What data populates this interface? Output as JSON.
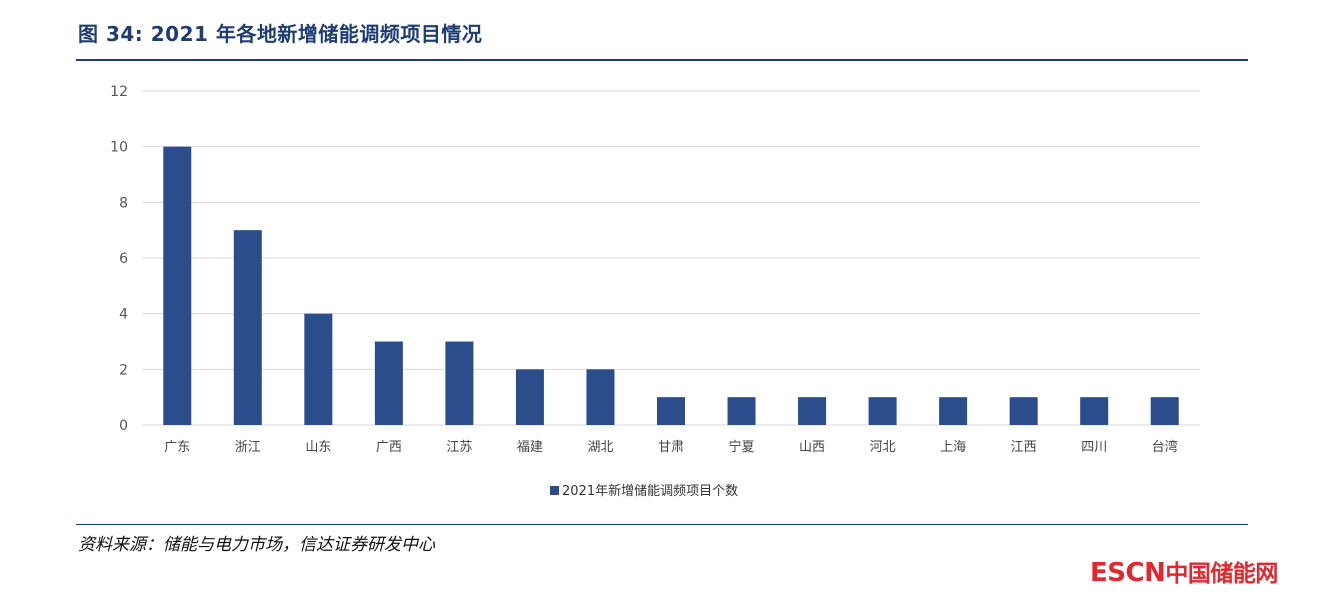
{
  "header": {
    "title": "图 34:  2021 年各地新增储能调频项目情况"
  },
  "footer": {
    "source": "资料来源：储能与电力市场，信达证券研发中心"
  },
  "watermark": {
    "latin": "ESCN",
    "cn": "中国储能网"
  },
  "colors": {
    "bar": "#2b4d8c",
    "rule": "#1f3c73",
    "grid": "#d9d9d9",
    "watermark": "#e0282e"
  },
  "chart_data": {
    "type": "bar",
    "title": "",
    "xlabel": "",
    "ylabel": "",
    "categories": [
      "广东",
      "浙江",
      "山东",
      "广西",
      "江苏",
      "福建",
      "湖北",
      "甘肃",
      "宁夏",
      "山西",
      "河北",
      "上海",
      "江西",
      "四川",
      "台湾"
    ],
    "series": [
      {
        "name": "2021年新增储能调频项目个数",
        "values": [
          10,
          7,
          4,
          3,
          3,
          2,
          2,
          1,
          1,
          1,
          1,
          1,
          1,
          1,
          1
        ]
      }
    ],
    "ylim": [
      0,
      12
    ],
    "yticks": [
      0,
      2,
      4,
      6,
      8,
      10,
      12
    ],
    "grid": true,
    "legend_position": "bottom"
  }
}
